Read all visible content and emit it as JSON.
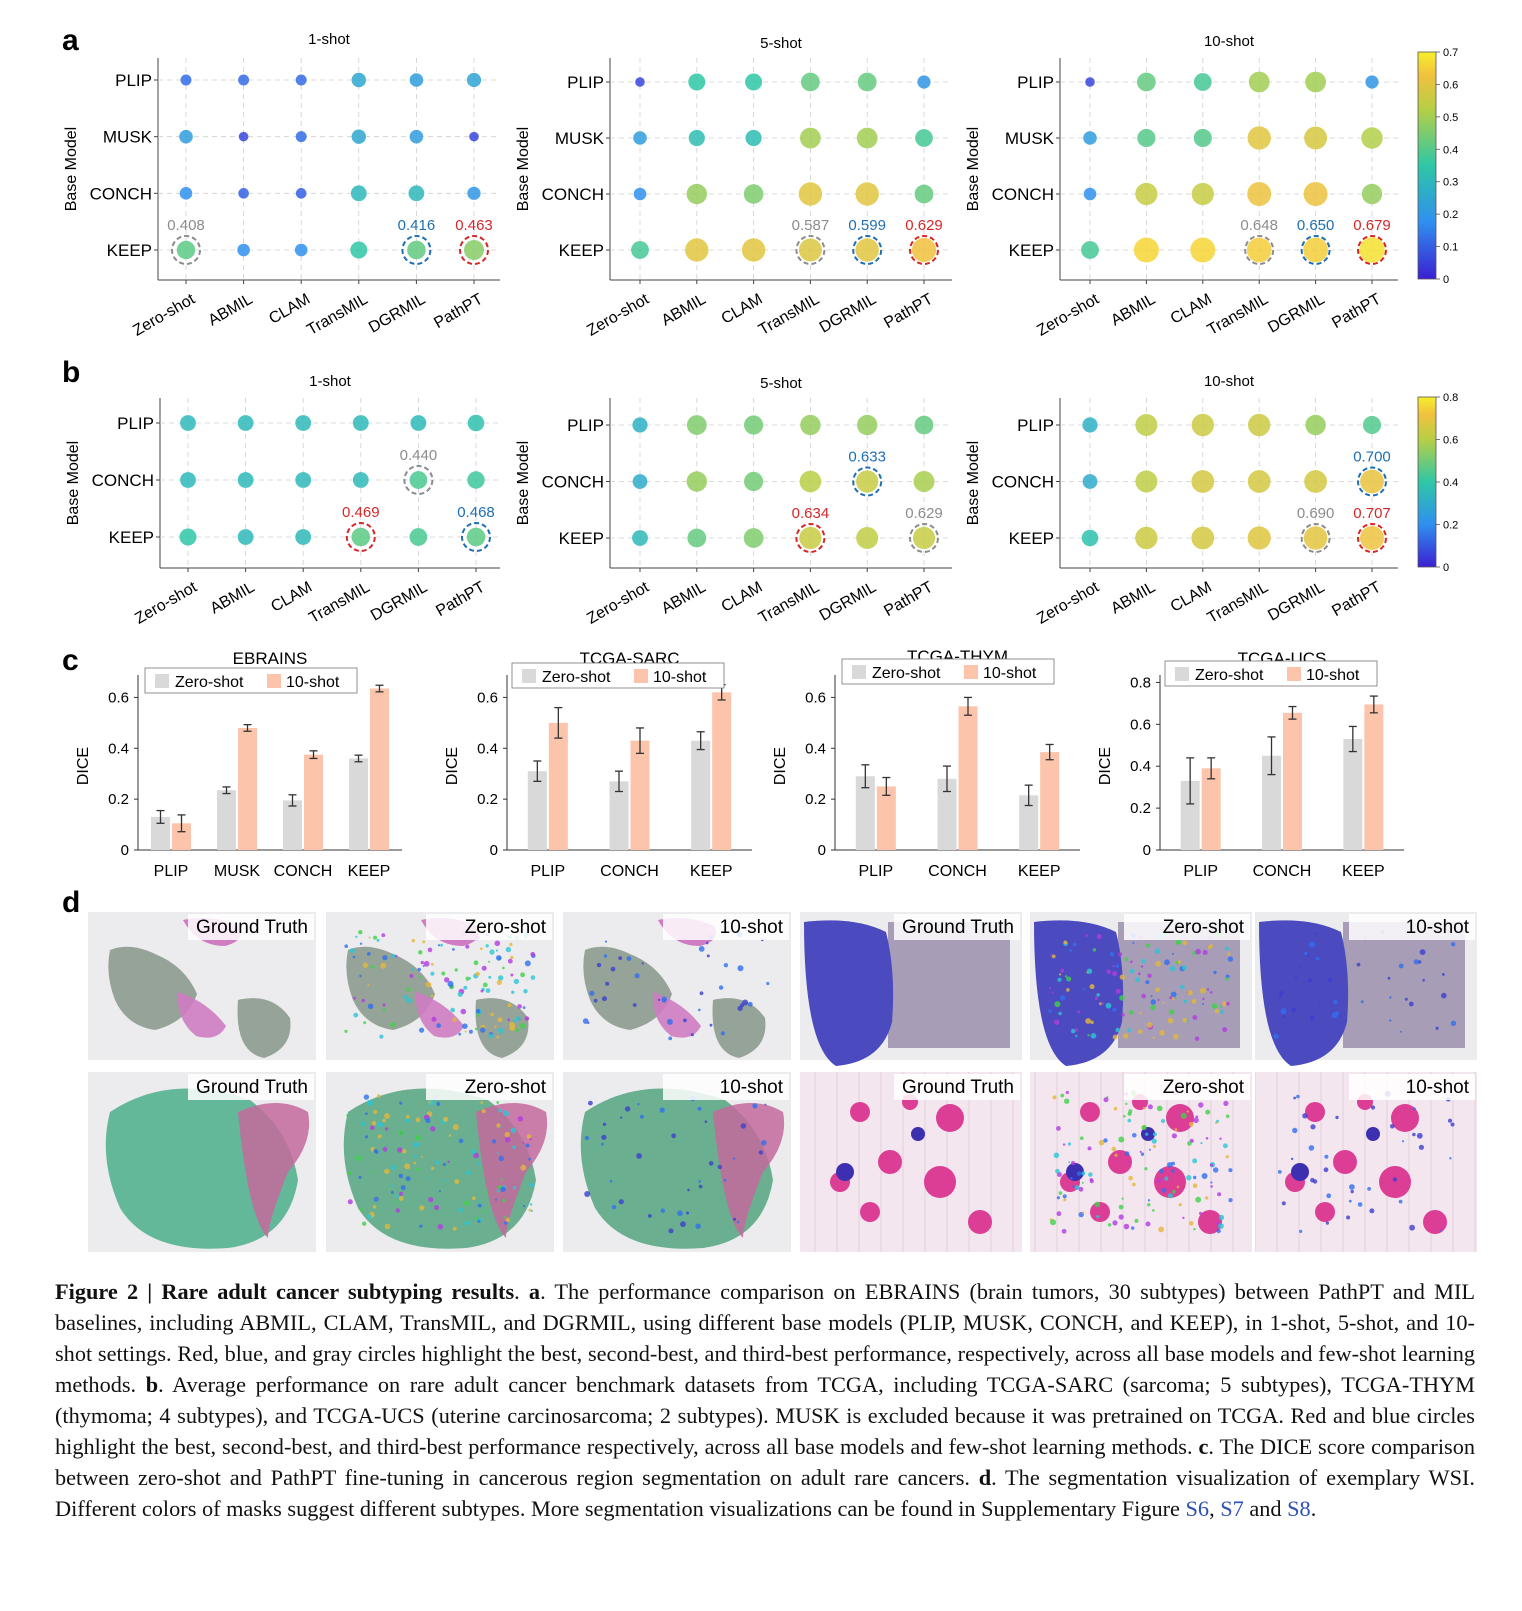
{
  "colors": {
    "gray_circle": "#8c8c8c",
    "blue_circle": "#1f6fb2",
    "red_circle": "#d62728",
    "bar_zero": "#d9d9d9",
    "bar_ten": "#fbc4ab",
    "label_gray": "#8c8c8c",
    "label_blue": "#1f6fb2",
    "label_red": "#d62728"
  },
  "panel_a": {
    "letter": "a",
    "ylabel": "Base Model",
    "colorbar_ticks": [
      "0.7",
      "0.6",
      "0.5",
      "0.4",
      "0.3",
      "0.2",
      "0.1",
      "0"
    ],
    "rows": [
      "PLIP",
      "MUSK",
      "CONCH",
      "KEEP"
    ],
    "cols": [
      "Zero-shot",
      "ABMIL",
      "CLAM",
      "TransMIL",
      "DGRMIL",
      "PathPT"
    ],
    "subplots": [
      {
        "title": "1-shot",
        "values": [
          [
            0.12,
            0.12,
            0.12,
            0.25,
            0.22,
            0.24
          ],
          [
            0.22,
            0.06,
            0.12,
            0.25,
            0.22,
            0.06
          ],
          [
            0.18,
            0.1,
            0.1,
            0.3,
            0.3,
            0.2
          ],
          [
            0.408,
            0.18,
            0.18,
            0.35,
            0.416,
            0.463
          ]
        ],
        "highlights": [
          {
            "row": 3,
            "col": 0,
            "label": "0.408",
            "rank": "gray"
          },
          {
            "row": 3,
            "col": 4,
            "label": "0.416",
            "rank": "blue"
          },
          {
            "row": 3,
            "col": 5,
            "label": "0.463",
            "rank": "red"
          }
        ]
      },
      {
        "title": "5-shot",
        "values": [
          [
            0.06,
            0.35,
            0.35,
            0.42,
            0.42,
            0.2
          ],
          [
            0.22,
            0.32,
            0.32,
            0.5,
            0.5,
            0.38
          ],
          [
            0.18,
            0.48,
            0.45,
            0.6,
            0.6,
            0.42
          ],
          [
            0.38,
            0.6,
            0.6,
            0.587,
            0.599,
            0.629
          ]
        ],
        "highlights": [
          {
            "row": 3,
            "col": 3,
            "label": "0.587",
            "rank": "gray"
          },
          {
            "row": 3,
            "col": 4,
            "label": "0.599",
            "rank": "blue"
          },
          {
            "row": 3,
            "col": 5,
            "label": "0.629",
            "rank": "red"
          }
        ]
      },
      {
        "title": "10-shot",
        "values": [
          [
            0.06,
            0.42,
            0.38,
            0.5,
            0.5,
            0.2
          ],
          [
            0.22,
            0.4,
            0.4,
            0.6,
            0.58,
            0.52
          ],
          [
            0.18,
            0.55,
            0.55,
            0.62,
            0.62,
            0.48
          ],
          [
            0.38,
            0.66,
            0.66,
            0.648,
            0.65,
            0.679
          ]
        ],
        "highlights": [
          {
            "row": 3,
            "col": 3,
            "label": "0.648",
            "rank": "gray"
          },
          {
            "row": 3,
            "col": 4,
            "label": "0.650",
            "rank": "blue"
          },
          {
            "row": 3,
            "col": 5,
            "label": "0.679",
            "rank": "red"
          }
        ]
      }
    ]
  },
  "panel_b": {
    "letter": "b",
    "ylabel": "Base Model",
    "colorbar_ticks": [
      "0.8",
      "0.6",
      "0.4",
      "0.2",
      "0"
    ],
    "rows": [
      "PLIP",
      "CONCH",
      "KEEP"
    ],
    "cols": [
      "Zero-shot",
      "ABMIL",
      "CLAM",
      "TransMIL",
      "DGRMIL",
      "PathPT"
    ],
    "subplots": [
      {
        "title": "1-shot",
        "values": [
          [
            0.35,
            0.35,
            0.35,
            0.35,
            0.35,
            0.38
          ],
          [
            0.35,
            0.35,
            0.35,
            0.35,
            0.44,
            0.42
          ],
          [
            0.4,
            0.35,
            0.35,
            0.469,
            0.44,
            0.468
          ]
        ],
        "highlights": [
          {
            "row": 1,
            "col": 4,
            "label": "0.440",
            "rank": "gray"
          },
          {
            "row": 2,
            "col": 3,
            "label": "0.469",
            "rank": "red"
          },
          {
            "row": 2,
            "col": 5,
            "label": "0.468",
            "rank": "blue"
          }
        ]
      },
      {
        "title": "5-shot",
        "values": [
          [
            0.32,
            0.52,
            0.5,
            0.55,
            0.55,
            0.48
          ],
          [
            0.3,
            0.55,
            0.5,
            0.6,
            0.633,
            0.58
          ],
          [
            0.35,
            0.48,
            0.52,
            0.634,
            0.62,
            0.629
          ]
        ],
        "highlights": [
          {
            "row": 1,
            "col": 4,
            "label": "0.633",
            "rank": "blue"
          },
          {
            "row": 2,
            "col": 3,
            "label": "0.634",
            "rank": "red"
          },
          {
            "row": 2,
            "col": 5,
            "label": "0.629",
            "rank": "gray"
          }
        ]
      },
      {
        "title": "10-shot",
        "values": [
          [
            0.32,
            0.62,
            0.64,
            0.64,
            0.55,
            0.45
          ],
          [
            0.3,
            0.62,
            0.66,
            0.66,
            0.66,
            0.7
          ],
          [
            0.38,
            0.64,
            0.66,
            0.68,
            0.69,
            0.707
          ]
        ],
        "highlights": [
          {
            "row": 1,
            "col": 5,
            "label": "0.700",
            "rank": "blue"
          },
          {
            "row": 2,
            "col": 4,
            "label": "0.690",
            "rank": "gray"
          },
          {
            "row": 2,
            "col": 5,
            "label": "0.707",
            "rank": "red"
          }
        ]
      }
    ]
  },
  "panel_c": {
    "letter": "c",
    "ylabel": "DICE",
    "legend": [
      "Zero-shot",
      "10-shot"
    ]
  },
  "chart_data": [
    {
      "type": "bar",
      "title": "EBRAINS",
      "ylabel": "DICE",
      "xlabel": "",
      "categories": [
        "PLIP",
        "MUSK",
        "CONCH",
        "KEEP"
      ],
      "ylim": [
        0,
        0.7
      ],
      "yticks": [
        "0",
        "0.2",
        "0.4",
        "0.6"
      ],
      "ytick_values": [
        0,
        0.2,
        0.4,
        0.6
      ],
      "series": [
        {
          "name": "Zero-shot",
          "values": [
            0.13,
            0.235,
            0.195,
            0.36
          ],
          "errors": [
            0.025,
            0.013,
            0.022,
            0.013
          ]
        },
        {
          "name": "10-shot",
          "values": [
            0.105,
            0.48,
            0.375,
            0.635
          ],
          "errors": [
            0.033,
            0.013,
            0.015,
            0.013
          ]
        }
      ]
    },
    {
      "type": "bar",
      "title": "TCGA-SARC",
      "ylabel": "DICE",
      "xlabel": "",
      "categories": [
        "PLIP",
        "CONCH",
        "KEEP"
      ],
      "ylim": [
        0,
        0.7
      ],
      "yticks": [
        "0",
        "0.2",
        "0.4",
        "0.6"
      ],
      "ytick_values": [
        0,
        0.2,
        0.4,
        0.6
      ],
      "series": [
        {
          "name": "Zero-shot",
          "values": [
            0.31,
            0.27,
            0.43
          ],
          "errors": [
            0.04,
            0.04,
            0.035
          ]
        },
        {
          "name": "10-shot",
          "values": [
            0.5,
            0.43,
            0.62
          ],
          "errors": [
            0.06,
            0.05,
            0.03
          ]
        }
      ]
    },
    {
      "type": "bar",
      "title": "TCGA-THYM",
      "ylabel": "DICE",
      "xlabel": "",
      "categories": [
        "PLIP",
        "CONCH",
        "KEEP"
      ],
      "ylim": [
        0,
        0.7
      ],
      "yticks": [
        "0",
        "0.2",
        "0.4",
        "0.6"
      ],
      "ytick_values": [
        0,
        0.2,
        0.4,
        0.6
      ],
      "series": [
        {
          "name": "Zero-shot",
          "values": [
            0.29,
            0.28,
            0.215
          ],
          "errors": [
            0.045,
            0.05,
            0.04
          ]
        },
        {
          "name": "10-shot",
          "values": [
            0.25,
            0.565,
            0.385
          ],
          "errors": [
            0.035,
            0.035,
            0.03
          ]
        }
      ]
    },
    {
      "type": "bar",
      "title": "TCGA-UCS",
      "ylabel": "DICE",
      "xlabel": "",
      "categories": [
        "PLIP",
        "CONCH",
        "KEEP"
      ],
      "ylim": [
        0,
        0.85
      ],
      "yticks": [
        "0",
        "0.2",
        "0.4",
        "0.6",
        "0.8"
      ],
      "ytick_values": [
        0,
        0.2,
        0.4,
        0.6,
        0.8
      ],
      "series": [
        {
          "name": "Zero-shot",
          "values": [
            0.33,
            0.45,
            0.53
          ],
          "errors": [
            0.11,
            0.09,
            0.06
          ]
        },
        {
          "name": "10-shot",
          "values": [
            0.39,
            0.655,
            0.695
          ],
          "errors": [
            0.05,
            0.03,
            0.04
          ]
        }
      ]
    }
  ],
  "panel_d": {
    "letter": "d",
    "tiles": [
      {
        "label": "Ground Truth",
        "style": "brain-gt"
      },
      {
        "label": "Zero-shot",
        "style": "brain-zs"
      },
      {
        "label": "10-shot",
        "style": "brain-10"
      },
      {
        "label": "Ground Truth",
        "style": "liver-gt"
      },
      {
        "label": "Zero-shot",
        "style": "liver-zs"
      },
      {
        "label": "10-shot",
        "style": "liver-10"
      },
      {
        "label": "Ground Truth",
        "style": "green-gt"
      },
      {
        "label": "Zero-shot",
        "style": "green-zs"
      },
      {
        "label": "10-shot",
        "style": "green-10"
      },
      {
        "label": "Ground Truth",
        "style": "pink-gt"
      },
      {
        "label": "Zero-shot",
        "style": "pink-zs"
      },
      {
        "label": "10-shot",
        "style": "pink-10"
      }
    ]
  },
  "caption": {
    "fig_label": "Figure 2 | Rare adult cancer subtyping results",
    "a_key": "a",
    "a_text": ". The performance comparison on EBRAINS (brain tumors, 30 subtypes) between PathPT and MIL baselines, including ABMIL, CLAM, TransMIL, and DGRMIL, using different base models (PLIP, MUSK, CONCH, and KEEP), in 1-shot, 5-shot, and 10-shot settings. Red, blue, and gray circles highlight the best, second-best, and third-best performance, respectively, across all base models and few-shot learning methods. ",
    "b_key": "b",
    "b_text": ". Average performance on rare adult cancer benchmark datasets from TCGA, including TCGA-SARC (sarcoma; 5 subtypes), TCGA-THYM (thymoma; 4 subtypes), and TCGA-UCS (uterine carcinosarcoma; 2 subtypes). MUSK is excluded because it was pretrained on TCGA. Red and blue circles highlight the best, second-best, and third-best performance respectively, across all base models and few-shot learning methods. ",
    "c_key": "c",
    "c_text": ". The DICE score comparison between zero-shot and PathPT fine-tuning in cancerous region segmentation on adult rare cancers. ",
    "d_key": "d",
    "d_text": ". The segmentation visualization of exemplary WSI. Different colors of masks suggest different subtypes. More segmentation visualizations can be found in Supplementary Figure ",
    "ref1": "S6",
    "sep1": ", ",
    "ref2": "S7",
    "sep2": " and ",
    "ref3": "S8",
    "end": "."
  }
}
